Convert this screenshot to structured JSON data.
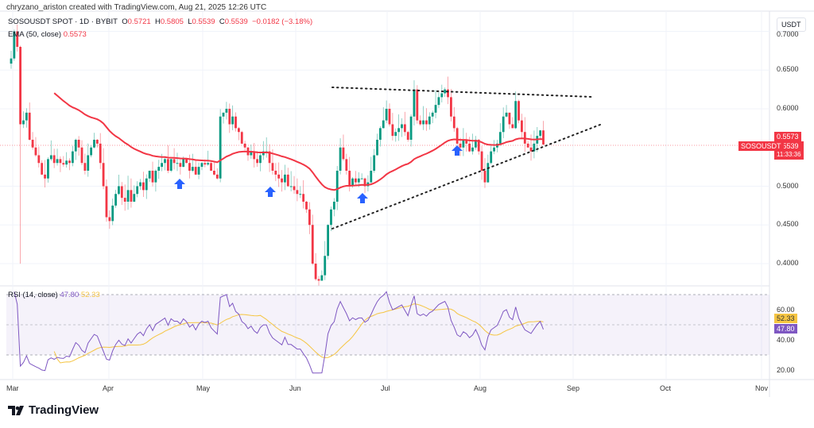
{
  "header": {
    "created": "chryzano_ariston created with TradingView.com, Aug 21, 2025 12:26 UTC"
  },
  "legend": {
    "symbol": "SOSOUSDT SPOT · 1D · BYBIT",
    "o_label": "O",
    "o": "0.5721",
    "h_label": "H",
    "h": "0.5805",
    "l_label": "L",
    "l": "0.5539",
    "c_label": "C",
    "c": "0.5539",
    "change": "−0.0182 (−3.18%)"
  },
  "ema": {
    "label": "EMA (50, close)",
    "value": "0.5573"
  },
  "rsi": {
    "label": "RSI (14, close)",
    "value": "47.80",
    "ma": "52.33",
    "ticks": [
      "60.00",
      "40.00",
      "20.00"
    ]
  },
  "currency": "USDT",
  "price_axis": [
    "0.7000",
    "0.6500",
    "0.6000",
    "0.5000",
    "0.4500",
    "0.4000"
  ],
  "tags": {
    "ema": "0.5573",
    "price": "0.5539",
    "countdown": "11:33:36",
    "symbol": "SOSOUSDT"
  },
  "x_axis": [
    "Mar",
    "Apr",
    "May",
    "Jun",
    "Jul",
    "Aug",
    "Sep",
    "Oct",
    "Nov"
  ],
  "colors": {
    "up": "#089981",
    "down": "#f23645",
    "ema": "#f23645",
    "rsi": "#7e57c2",
    "rsi_ma": "#f5c542",
    "arrow": "#2962ff"
  },
  "brand": "TradingView",
  "chart_data": {
    "type": "candlestick",
    "ylim": [
      0.37,
      0.7
    ],
    "closes": [
      0.665,
      0.7,
      0.68,
      0.58,
      0.585,
      0.595,
      0.56,
      0.55,
      0.54,
      0.53,
      0.515,
      0.51,
      0.535,
      0.54,
      0.53,
      0.535,
      0.53,
      0.528,
      0.533,
      0.53,
      0.545,
      0.56,
      0.55,
      0.53,
      0.52,
      0.54,
      0.55,
      0.56,
      0.555,
      0.53,
      0.5,
      0.46,
      0.455,
      0.475,
      0.49,
      0.5,
      0.485,
      0.48,
      0.495,
      0.48,
      0.49,
      0.5,
      0.505,
      0.495,
      0.51,
      0.52,
      0.505,
      0.52,
      0.525,
      0.53,
      0.535,
      0.52,
      0.535,
      0.53,
      0.53,
      0.525,
      0.535,
      0.53,
      0.52,
      0.525,
      0.515,
      0.525,
      0.53,
      0.528,
      0.53,
      0.52,
      0.515,
      0.51,
      0.59,
      0.595,
      0.6,
      0.58,
      0.59,
      0.575,
      0.57,
      0.555,
      0.55,
      0.54,
      0.545,
      0.535,
      0.53,
      0.54,
      0.545,
      0.545,
      0.53,
      0.52,
      0.515,
      0.51,
      0.505,
      0.515,
      0.5,
      0.5,
      0.495,
      0.49,
      0.49,
      0.48,
      0.47,
      0.45,
      0.4,
      0.38,
      0.378,
      0.385,
      0.41,
      0.45,
      0.47,
      0.48,
      0.52,
      0.55,
      0.535,
      0.52,
      0.5,
      0.51,
      0.505,
      0.51,
      0.51,
      0.5,
      0.505,
      0.52,
      0.54,
      0.56,
      0.575,
      0.585,
      0.6,
      0.58,
      0.565,
      0.57,
      0.575,
      0.58,
      0.57,
      0.56,
      0.59,
      0.625,
      0.585,
      0.58,
      0.585,
      0.58,
      0.59,
      0.595,
      0.605,
      0.615,
      0.62,
      0.625,
      0.615,
      0.59,
      0.575,
      0.555,
      0.55,
      0.56,
      0.555,
      0.545,
      0.55,
      0.56,
      0.545,
      0.52,
      0.505,
      0.53,
      0.545,
      0.55,
      0.555,
      0.57,
      0.59,
      0.595,
      0.58,
      0.575,
      0.61,
      0.585,
      0.57,
      0.555,
      0.55,
      0.545,
      0.555,
      0.565,
      0.5721,
      0.5539
    ],
    "ema_period": 50,
    "rsi_period": 14,
    "rsi_ylim": [
      15,
      75
    ]
  }
}
